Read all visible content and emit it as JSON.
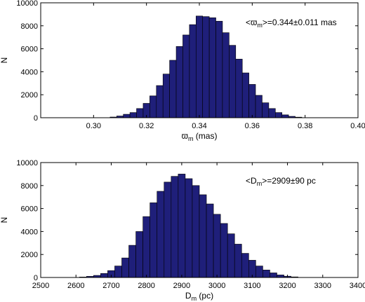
{
  "chart_data": [
    {
      "type": "bar",
      "title": "",
      "xlabel_main": "ϖ",
      "xlabel_sub": "m",
      "xlabel_rest": " (mas)",
      "ylabel": "N",
      "xlim": [
        0.28,
        0.4
      ],
      "ylim": [
        0,
        10000
      ],
      "xticks": [
        "0.30",
        "0.32",
        "0.34",
        "0.36",
        "0.38",
        "0.40"
      ],
      "xtick_values": [
        0.3,
        0.32,
        0.34,
        0.36,
        0.38,
        0.4
      ],
      "yticks": [
        "0",
        "2000",
        "4000",
        "6000",
        "8000",
        "10000"
      ],
      "ytick_values": [
        0,
        2000,
        4000,
        6000,
        8000,
        10000
      ],
      "bin_width": 0.0025,
      "bins": [
        0.3075,
        0.31,
        0.3125,
        0.315,
        0.3175,
        0.32,
        0.3225,
        0.325,
        0.3275,
        0.33,
        0.3325,
        0.335,
        0.3375,
        0.34,
        0.3425,
        0.345,
        0.3475,
        0.35,
        0.3525,
        0.355,
        0.3575,
        0.36,
        0.3625,
        0.365,
        0.3675,
        0.37,
        0.3725,
        0.375,
        0.3775
      ],
      "values": [
        60,
        150,
        300,
        450,
        800,
        1250,
        1900,
        2800,
        3800,
        5000,
        6200,
        7200,
        8100,
        8850,
        8800,
        8700,
        8400,
        7400,
        6300,
        5100,
        3900,
        2900,
        1950,
        1300,
        800,
        450,
        250,
        120,
        50
      ],
      "annotation_pre": "<ϖ",
      "annotation_sub": "m",
      "annotation_post": ">=0.344±0.011 mas"
    },
    {
      "type": "bar",
      "title": "",
      "xlabel_main": "D",
      "xlabel_sub": "m",
      "xlabel_rest": " (pc)",
      "ylabel": "N",
      "xlim": [
        2500,
        3400
      ],
      "ylim": [
        0,
        10000
      ],
      "xticks": [
        "2500",
        "2600",
        "2700",
        "2800",
        "2900",
        "3000",
        "3100",
        "3200",
        "3300",
        "3400"
      ],
      "xtick_values": [
        2500,
        2600,
        2700,
        2800,
        2900,
        3000,
        3100,
        3200,
        3300,
        3400
      ],
      "yticks": [
        "0",
        "2000",
        "4000",
        "6000",
        "8000",
        "10000"
      ],
      "ytick_values": [
        0,
        2000,
        4000,
        6000,
        8000,
        10000
      ],
      "bin_width": 20,
      "bins": [
        2620,
        2640,
        2660,
        2680,
        2700,
        2720,
        2740,
        2760,
        2780,
        2800,
        2820,
        2840,
        2860,
        2880,
        2900,
        2920,
        2940,
        2960,
        2980,
        3000,
        3020,
        3040,
        3060,
        3080,
        3100,
        3120,
        3140,
        3160,
        3180,
        3200,
        3220
      ],
      "values": [
        40,
        100,
        180,
        350,
        600,
        1000,
        1700,
        2800,
        4000,
        5300,
        6500,
        7500,
        8300,
        8800,
        9000,
        8600,
        8000,
        7200,
        6400,
        5500,
        4700,
        3800,
        2900,
        2100,
        1500,
        1000,
        650,
        400,
        220,
        110,
        50
      ],
      "annotation_pre": "<D",
      "annotation_sub": "m",
      "annotation_post": ">=2909±90 pc"
    }
  ]
}
